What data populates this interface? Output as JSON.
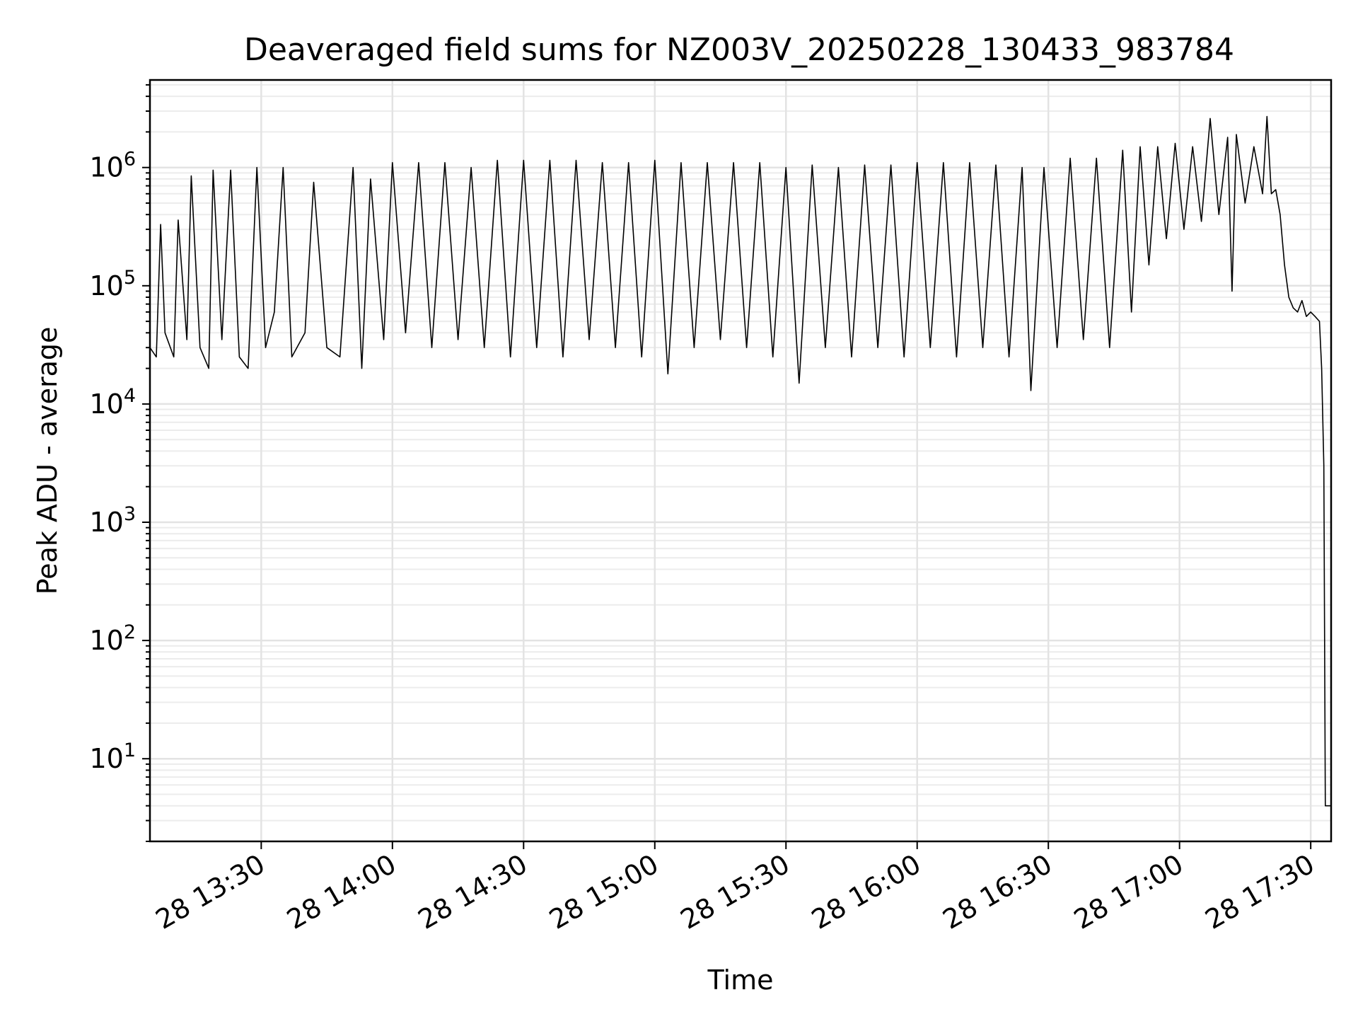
{
  "chart_data": {
    "type": "line",
    "title": "Deaveraged field sums for NZ003V_20250228_130433_983784",
    "xlabel": "Time",
    "ylabel": "Peak ADU - average",
    "yscale": "log",
    "ylim": [
      2,
      5500000
    ],
    "xlim": [
      "2025-02-28 13:04:33",
      "2025-02-28 17:34:40"
    ],
    "grid": "major and minor",
    "x_ticks": [
      "2025-02-28 13:30",
      "2025-02-28 14:00",
      "2025-02-28 14:30",
      "2025-02-28 15:00",
      "2025-02-28 15:30",
      "2025-02-28 16:00",
      "2025-02-28 16:30",
      "2025-02-28 17:00",
      "2025-02-28 17:30"
    ],
    "x_tick_labels": [
      "28 13:30",
      "28 14:00",
      "28 14:30",
      "28 15:00",
      "28 15:30",
      "28 16:00",
      "28 16:30",
      "28 17:00",
      "28 17:30"
    ],
    "y_ticks": [
      10,
      100,
      1000,
      10000,
      100000,
      1000000
    ],
    "y_tick_labels": [
      {
        "base": "10",
        "exp": "1"
      },
      {
        "base": "10",
        "exp": "2"
      },
      {
        "base": "10",
        "exp": "3"
      },
      {
        "base": "10",
        "exp": "4"
      },
      {
        "base": "10",
        "exp": "5"
      },
      {
        "base": "10",
        "exp": "6"
      }
    ],
    "series": [
      {
        "color": "#000000",
        "points": [
          [
            "2025-02-28 13:04:33",
            30000
          ],
          [
            "2025-02-28 13:06:00",
            25000
          ],
          [
            "2025-02-28 13:07:00",
            330000
          ],
          [
            "2025-02-28 13:08:00",
            40000
          ],
          [
            "2025-02-28 13:10:00",
            25000
          ],
          [
            "2025-02-28 13:11:00",
            360000
          ],
          [
            "2025-02-28 13:13:00",
            35000
          ],
          [
            "2025-02-28 13:14:00",
            850000
          ],
          [
            "2025-02-28 13:16:00",
            30000
          ],
          [
            "2025-02-28 13:18:00",
            20000
          ],
          [
            "2025-02-28 13:19:00",
            950000
          ],
          [
            "2025-02-28 13:21:00",
            35000
          ],
          [
            "2025-02-28 13:23:00",
            950000
          ],
          [
            "2025-02-28 13:25:00",
            25000
          ],
          [
            "2025-02-28 13:27:00",
            20000
          ],
          [
            "2025-02-28 13:29:00",
            1000000
          ],
          [
            "2025-02-28 13:31:00",
            30000
          ],
          [
            "2025-02-28 13:33:00",
            60000
          ],
          [
            "2025-02-28 13:35:00",
            1000000
          ],
          [
            "2025-02-28 13:37:00",
            25000
          ],
          [
            "2025-02-28 13:40:00",
            40000
          ],
          [
            "2025-02-28 13:42:00",
            750000
          ],
          [
            "2025-02-28 13:45:00",
            30000
          ],
          [
            "2025-02-28 13:48:00",
            25000
          ],
          [
            "2025-02-28 13:51:00",
            1000000
          ],
          [
            "2025-02-28 13:53:00",
            20000
          ],
          [
            "2025-02-28 13:55:00",
            800000
          ],
          [
            "2025-02-28 13:58:00",
            35000
          ],
          [
            "2025-02-28 14:00:00",
            1100000
          ],
          [
            "2025-02-28 14:03:00",
            40000
          ],
          [
            "2025-02-28 14:06:00",
            1100000
          ],
          [
            "2025-02-28 14:09:00",
            30000
          ],
          [
            "2025-02-28 14:12:00",
            1100000
          ],
          [
            "2025-02-28 14:15:00",
            35000
          ],
          [
            "2025-02-28 14:18:00",
            1000000
          ],
          [
            "2025-02-28 14:21:00",
            30000
          ],
          [
            "2025-02-28 14:24:00",
            1150000
          ],
          [
            "2025-02-28 14:27:00",
            25000
          ],
          [
            "2025-02-28 14:30:00",
            1150000
          ],
          [
            "2025-02-28 14:33:00",
            30000
          ],
          [
            "2025-02-28 14:36:00",
            1150000
          ],
          [
            "2025-02-28 14:39:00",
            25000
          ],
          [
            "2025-02-28 14:42:00",
            1150000
          ],
          [
            "2025-02-28 14:45:00",
            35000
          ],
          [
            "2025-02-28 14:48:00",
            1100000
          ],
          [
            "2025-02-28 14:51:00",
            30000
          ],
          [
            "2025-02-28 14:54:00",
            1100000
          ],
          [
            "2025-02-28 14:57:00",
            25000
          ],
          [
            "2025-02-28 15:00:00",
            1150000
          ],
          [
            "2025-02-28 15:03:00",
            18000
          ],
          [
            "2025-02-28 15:06:00",
            1100000
          ],
          [
            "2025-02-28 15:09:00",
            30000
          ],
          [
            "2025-02-28 15:12:00",
            1100000
          ],
          [
            "2025-02-28 15:15:00",
            35000
          ],
          [
            "2025-02-28 15:18:00",
            1100000
          ],
          [
            "2025-02-28 15:21:00",
            30000
          ],
          [
            "2025-02-28 15:24:00",
            1100000
          ],
          [
            "2025-02-28 15:27:00",
            25000
          ],
          [
            "2025-02-28 15:30:00",
            1000000
          ],
          [
            "2025-02-28 15:33:00",
            15000
          ],
          [
            "2025-02-28 15:36:00",
            1050000
          ],
          [
            "2025-02-28 15:39:00",
            30000
          ],
          [
            "2025-02-28 15:42:00",
            1000000
          ],
          [
            "2025-02-28 15:45:00",
            25000
          ],
          [
            "2025-02-28 15:48:00",
            1050000
          ],
          [
            "2025-02-28 15:51:00",
            30000
          ],
          [
            "2025-02-28 15:54:00",
            1050000
          ],
          [
            "2025-02-28 15:57:00",
            25000
          ],
          [
            "2025-02-28 16:00:00",
            1100000
          ],
          [
            "2025-02-28 16:03:00",
            30000
          ],
          [
            "2025-02-28 16:06:00",
            1100000
          ],
          [
            "2025-02-28 16:09:00",
            25000
          ],
          [
            "2025-02-28 16:12:00",
            1100000
          ],
          [
            "2025-02-28 16:15:00",
            30000
          ],
          [
            "2025-02-28 16:18:00",
            1050000
          ],
          [
            "2025-02-28 16:21:00",
            25000
          ],
          [
            "2025-02-28 16:24:00",
            1000000
          ],
          [
            "2025-02-28 16:26:00",
            13000
          ],
          [
            "2025-02-28 16:29:00",
            1000000
          ],
          [
            "2025-02-28 16:32:00",
            30000
          ],
          [
            "2025-02-28 16:35:00",
            1200000
          ],
          [
            "2025-02-28 16:38:00",
            35000
          ],
          [
            "2025-02-28 16:41:00",
            1200000
          ],
          [
            "2025-02-28 16:44:00",
            30000
          ],
          [
            "2025-02-28 16:47:00",
            1400000
          ],
          [
            "2025-02-28 16:49:00",
            60000
          ],
          [
            "2025-02-28 16:51:00",
            1500000
          ],
          [
            "2025-02-28 16:53:00",
            150000
          ],
          [
            "2025-02-28 16:55:00",
            1500000
          ],
          [
            "2025-02-28 16:57:00",
            250000
          ],
          [
            "2025-02-28 16:59:00",
            1600000
          ],
          [
            "2025-02-28 17:01:00",
            300000
          ],
          [
            "2025-02-28 17:03:00",
            1500000
          ],
          [
            "2025-02-28 17:05:00",
            350000
          ],
          [
            "2025-02-28 17:07:00",
            2600000
          ],
          [
            "2025-02-28 17:09:00",
            400000
          ],
          [
            "2025-02-28 17:11:00",
            1800000
          ],
          [
            "2025-02-28 17:12:00",
            90000
          ],
          [
            "2025-02-28 17:13:00",
            1900000
          ],
          [
            "2025-02-28 17:15:00",
            500000
          ],
          [
            "2025-02-28 17:17:00",
            1500000
          ],
          [
            "2025-02-28 17:19:00",
            600000
          ],
          [
            "2025-02-28 17:20:00",
            2700000
          ],
          [
            "2025-02-28 17:21:00",
            600000
          ],
          [
            "2025-02-28 17:22:00",
            650000
          ],
          [
            "2025-02-28 17:23:00",
            400000
          ],
          [
            "2025-02-28 17:24:00",
            150000
          ],
          [
            "2025-02-28 17:25:00",
            80000
          ],
          [
            "2025-02-28 17:26:00",
            65000
          ],
          [
            "2025-02-28 17:27:00",
            60000
          ],
          [
            "2025-02-28 17:28:00",
            75000
          ],
          [
            "2025-02-28 17:29:00",
            55000
          ],
          [
            "2025-02-28 17:30:00",
            60000
          ],
          [
            "2025-02-28 17:31:00",
            55000
          ],
          [
            "2025-02-28 17:32:00",
            50000
          ],
          [
            "2025-02-28 17:32:30",
            20000
          ],
          [
            "2025-02-28 17:33:00",
            3000
          ],
          [
            "2025-02-28 17:33:20",
            4
          ],
          [
            "2025-02-28 17:34:00",
            4
          ],
          [
            "2025-02-28 17:34:40",
            4
          ]
        ]
      }
    ]
  }
}
